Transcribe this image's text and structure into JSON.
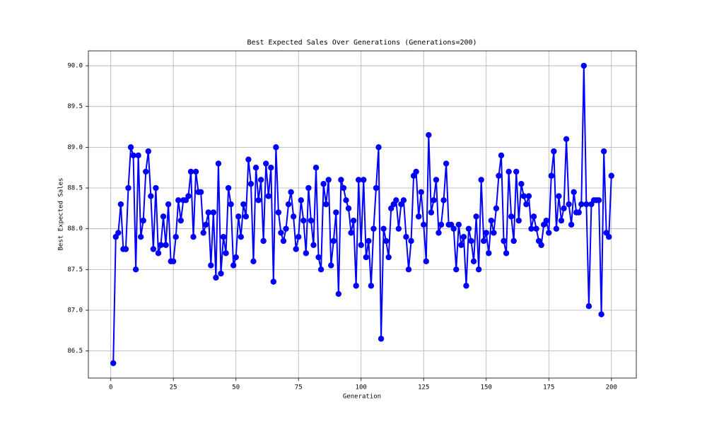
{
  "chart_data": {
    "type": "line",
    "title": "Best Expected Sales Over Generations (Generations=200)",
    "x_label": "Generation",
    "y_label": "Best Expected Sales",
    "x": [
      1,
      2,
      3,
      4,
      5,
      6,
      7,
      8,
      9,
      10,
      11,
      12,
      13,
      14,
      15,
      16,
      17,
      18,
      19,
      20,
      21,
      22,
      23,
      24,
      25,
      26,
      27,
      28,
      29,
      30,
      31,
      32,
      33,
      34,
      35,
      36,
      37,
      38,
      39,
      40,
      41,
      42,
      43,
      44,
      45,
      46,
      47,
      48,
      49,
      50,
      51,
      52,
      53,
      54,
      55,
      56,
      57,
      58,
      59,
      60,
      61,
      62,
      63,
      64,
      65,
      66,
      67,
      68,
      69,
      70,
      71,
      72,
      73,
      74,
      75,
      76,
      77,
      78,
      79,
      80,
      81,
      82,
      83,
      84,
      85,
      86,
      87,
      88,
      89,
      90,
      91,
      92,
      93,
      94,
      95,
      96,
      97,
      98,
      99,
      100,
      101,
      102,
      103,
      104,
      105,
      106,
      107,
      108,
      109,
      110,
      111,
      112,
      113,
      114,
      115,
      116,
      117,
      118,
      119,
      120,
      121,
      122,
      123,
      124,
      125,
      126,
      127,
      128,
      129,
      130,
      131,
      132,
      133,
      134,
      135,
      136,
      137,
      138,
      139,
      140,
      141,
      142,
      143,
      144,
      145,
      146,
      147,
      148,
      149,
      150,
      151,
      152,
      153,
      154,
      155,
      156,
      157,
      158,
      159,
      160,
      161,
      162,
      163,
      164,
      165,
      166,
      167,
      168,
      169,
      170,
      171,
      172,
      173,
      174,
      175,
      176,
      177,
      178,
      179,
      180,
      181,
      182,
      183,
      184,
      185,
      186,
      187,
      188,
      189,
      190,
      191,
      192,
      193,
      194,
      195,
      196,
      197,
      198,
      199,
      200
    ],
    "series": [
      {
        "name": "Best Expected Sales",
        "color": "#0000ff",
        "values": [
          86.35,
          87.9,
          87.95,
          88.3,
          87.75,
          87.75,
          88.5,
          89.0,
          88.9,
          87.5,
          88.9,
          87.9,
          88.1,
          88.7,
          88.95,
          88.4,
          87.75,
          88.5,
          87.7,
          87.8,
          88.15,
          87.8,
          88.3,
          87.6,
          87.6,
          87.9,
          88.35,
          88.1,
          88.35,
          88.35,
          88.4,
          88.7,
          87.9,
          88.7,
          88.45,
          88.45,
          87.95,
          88.05,
          88.2,
          87.55,
          88.2,
          87.4,
          88.8,
          87.45,
          87.9,
          87.7,
          88.5,
          88.3,
          87.55,
          87.65,
          88.15,
          87.9,
          88.3,
          88.15,
          88.85,
          88.55,
          87.6,
          88.75,
          88.35,
          88.6,
          87.85,
          88.8,
          88.4,
          88.75,
          87.35,
          89.0,
          88.2,
          87.95,
          87.85,
          88.0,
          88.3,
          88.45,
          88.15,
          87.75,
          87.9,
          88.35,
          88.1,
          87.7,
          88.5,
          88.1,
          87.8,
          88.75,
          87.65,
          87.5,
          88.55,
          88.3,
          88.6,
          87.55,
          87.85,
          88.2,
          87.2,
          88.6,
          88.5,
          88.35,
          88.25,
          87.95,
          88.1,
          87.3,
          88.6,
          87.8,
          88.6,
          87.65,
          87.85,
          87.3,
          88.0,
          88.5,
          89.0,
          86.65,
          88.0,
          87.85,
          87.65,
          88.25,
          88.3,
          88.35,
          88.0,
          88.3,
          88.35,
          87.9,
          87.5,
          87.85,
          88.65,
          88.7,
          88.15,
          88.45,
          88.05,
          87.6,
          89.15,
          88.2,
          88.35,
          88.6,
          87.95,
          88.05,
          88.35,
          88.8,
          88.05,
          88.05,
          88.0,
          87.5,
          88.05,
          87.8,
          87.9,
          87.3,
          88.0,
          87.85,
          87.6,
          88.15,
          87.5,
          88.6,
          87.85,
          87.95,
          87.7,
          88.1,
          87.95,
          88.25,
          88.65,
          88.9,
          87.85,
          87.7,
          88.7,
          88.15,
          87.85,
          88.7,
          88.1,
          88.55,
          88.4,
          88.3,
          88.4,
          88.0,
          88.15,
          88.0,
          87.85,
          87.8,
          88.05,
          88.1,
          87.95,
          88.65,
          88.95,
          88.0,
          88.4,
          88.1,
          88.25,
          89.1,
          88.3,
          88.05,
          88.45,
          88.2,
          88.2,
          88.3,
          90.0,
          88.3,
          87.05,
          88.3,
          88.35,
          88.35,
          88.35,
          86.95,
          88.95,
          87.95,
          87.9,
          88.65
        ]
      }
    ],
    "xlim": [
      -8.95,
      209.95
    ],
    "xticks": [
      0,
      25,
      50,
      75,
      100,
      125,
      150,
      175,
      200
    ],
    "ylim": [
      86.1675,
      90.1825
    ],
    "yticks": [
      86.5,
      {
        "value": 87,
        "label": "87.0"
      },
      87.5,
      {
        "value": 88,
        "label": "88.0"
      },
      88.5,
      {
        "value": 89,
        "label": "89.0"
      },
      89.5,
      {
        "value": 90,
        "label": "90.0"
      }
    ],
    "grid": true,
    "marker": "o"
  }
}
